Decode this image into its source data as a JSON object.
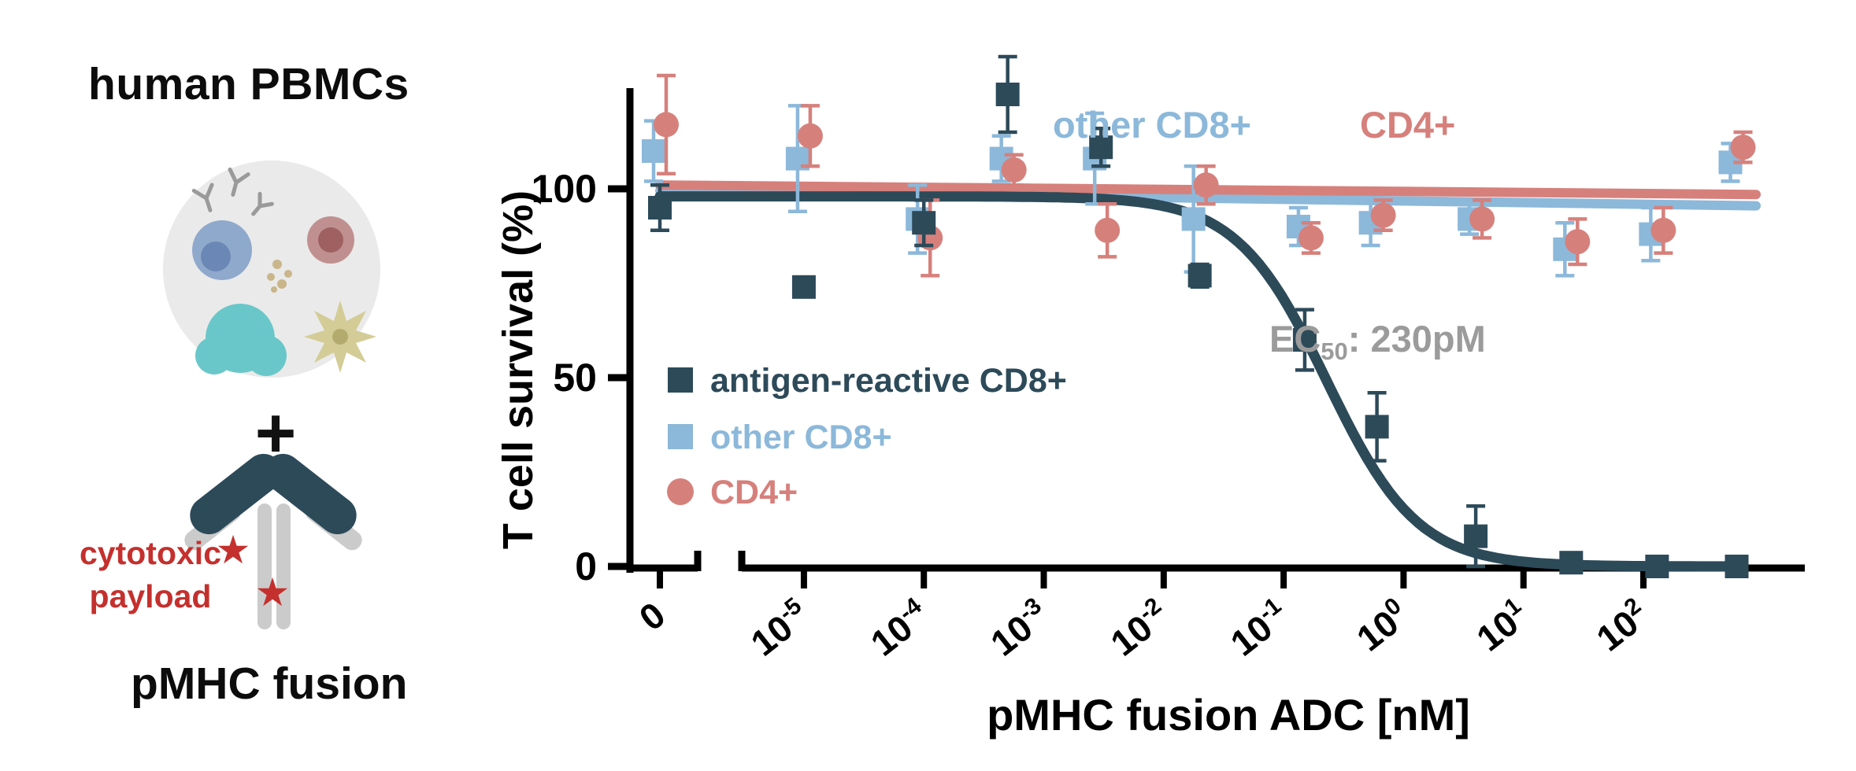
{
  "figure": {
    "left_panel": {
      "title_top": "human PBMCs",
      "plus_sign": "+",
      "payload_label": [
        "cytotoxic",
        "payload"
      ],
      "title_bottom": "pMHC fusion",
      "colors": {
        "antibody_heavy": "#2d4a59",
        "antibody_light": "#cbcbcb",
        "payload_text": "#c4302d",
        "payload_star": "#c4302d",
        "pbmc_circle": "#eaeaea",
        "cell_blue": "#8fa9cc",
        "cell_teal": "#6ac7c9",
        "cell_maroon": "#c09090",
        "cell_olive": "#d3cc96"
      }
    }
  },
  "chart_data": {
    "type": "scatter",
    "title": "",
    "xlabel": "pMHC fusion ADC [nM]",
    "ylabel": "T cell survival (%)",
    "x_scale": "log with zero point and axis break",
    "ylim": [
      0,
      135
    ],
    "grid": false,
    "y_ticks": [
      {
        "value": 0,
        "label": "0"
      },
      {
        "value": 50,
        "label": "50"
      },
      {
        "value": 100,
        "label": "100"
      }
    ],
    "x_ticks": [
      {
        "value": 0,
        "label": "0"
      },
      {
        "value": 1e-05,
        "base": "10",
        "exp": "-5"
      },
      {
        "value": 0.0001,
        "base": "10",
        "exp": "-4"
      },
      {
        "value": 0.001,
        "base": "10",
        "exp": "-3"
      },
      {
        "value": 0.01,
        "base": "10",
        "exp": "-2"
      },
      {
        "value": 0.1,
        "base": "10",
        "exp": "-1"
      },
      {
        "value": 1,
        "base": "10",
        "exp": "0"
      },
      {
        "value": 10,
        "base": "10",
        "exp": "1"
      },
      {
        "value": 100,
        "base": "10",
        "exp": "2"
      }
    ],
    "annotations": {
      "other_cd8": {
        "text": "other CD8+",
        "color": "#8cb8da"
      },
      "cd4": {
        "text": "CD4+",
        "color": "#d6807c"
      },
      "ec50": {
        "prefix": "EC",
        "sub": "50",
        "suffix": ": 230pM",
        "color": "#9b9b9b"
      }
    },
    "legend": {
      "position": "inside-left"
    },
    "series": [
      {
        "name": "antigen-reactive CD8+",
        "color": "#2d4a59",
        "marker": "square",
        "x": [
          0,
          1e-05,
          0.0001,
          0.0005,
          0.003,
          0.02,
          0.15,
          0.6,
          4,
          25,
          130,
          600
        ],
        "y": [
          95,
          74,
          91,
          125,
          111,
          77,
          60,
          37,
          8,
          1,
          0,
          0
        ],
        "err": [
          6,
          0,
          6,
          10,
          5,
          3,
          8,
          9,
          8,
          2,
          0,
          0
        ],
        "fit": {
          "type": "sigmoid-inhibition",
          "top": 98,
          "bottom": 0,
          "ec50_nM": 0.23,
          "hill": 1.15
        }
      },
      {
        "name": "other CD8+",
        "color": "#8cb8da",
        "marker": "square",
        "x": [
          0,
          1e-05,
          0.0001,
          0.0005,
          0.003,
          0.02,
          0.15,
          0.6,
          4,
          25,
          130,
          600
        ],
        "y": [
          110,
          108,
          92,
          108,
          108,
          92,
          90,
          91,
          92,
          84,
          88,
          107
        ],
        "err": [
          8,
          14,
          9,
          6,
          12,
          14,
          5,
          6,
          4,
          7,
          7,
          5
        ],
        "fit": {
          "type": "linear",
          "y_start": 99.5,
          "y_end": 95.5
        }
      },
      {
        "name": "CD4+",
        "color": "#d6807c",
        "marker": "circle",
        "x": [
          0,
          1e-05,
          0.0001,
          0.0005,
          0.003,
          0.02,
          0.15,
          0.6,
          4,
          25,
          130,
          600
        ],
        "y": [
          117,
          114,
          87,
          105,
          89,
          101,
          87,
          93,
          92,
          86,
          89,
          111
        ],
        "err": [
          13,
          8,
          10,
          4,
          7,
          5,
          4,
          4,
          5,
          6,
          6,
          4
        ],
        "fit": {
          "type": "linear",
          "y_start": 101,
          "y_end": 98.5
        }
      }
    ]
  }
}
